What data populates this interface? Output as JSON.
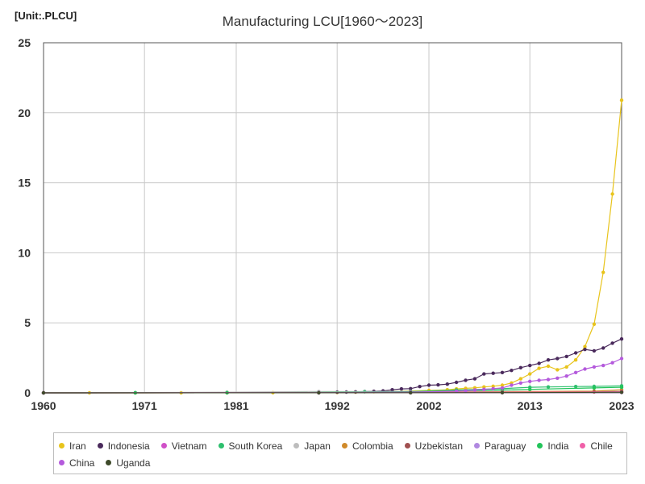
{
  "header": {
    "unit": "[Unit:.PLCU]",
    "title": "Manufacturing LCU[1960～2023]"
  },
  "chart_data": {
    "type": "line",
    "title": "Manufacturing LCU[1960～2023]",
    "unit_label": "[Unit:.PLCU]",
    "xlim": [
      1960,
      2023
    ],
    "ylim": [
      0,
      25
    ],
    "x_ticks": [
      "1960",
      "1971",
      "1981",
      "1992",
      "2002",
      "2013",
      "2023"
    ],
    "y_ticks": [
      "0",
      "5",
      "10",
      "15",
      "20",
      "25"
    ],
    "grid": true,
    "legend_position": "bottom",
    "series": [
      {
        "name": "Iran",
        "color": "#e8c41c",
        "points": [
          [
            1960,
            0.001
          ],
          [
            1965,
            0.001
          ],
          [
            1970,
            0.002
          ],
          [
            1975,
            0.004
          ],
          [
            1980,
            0.007
          ],
          [
            1985,
            0.012
          ],
          [
            1990,
            0.02
          ],
          [
            1992,
            0.03
          ],
          [
            1994,
            0.05
          ],
          [
            1996,
            0.08
          ],
          [
            1998,
            0.1
          ],
          [
            2000,
            0.13
          ],
          [
            2002,
            0.17
          ],
          [
            2004,
            0.22
          ],
          [
            2005,
            0.28
          ],
          [
            2006,
            0.32
          ],
          [
            2007,
            0.36
          ],
          [
            2008,
            0.42
          ],
          [
            2009,
            0.47
          ],
          [
            2010,
            0.55
          ],
          [
            2011,
            0.7
          ],
          [
            2012,
            1.0
          ],
          [
            2013,
            1.35
          ],
          [
            2014,
            1.75
          ],
          [
            2015,
            1.9
          ],
          [
            2016,
            1.65
          ],
          [
            2017,
            1.85
          ],
          [
            2018,
            2.35
          ],
          [
            2019,
            3.3
          ],
          [
            2020,
            4.9
          ],
          [
            2021,
            8.6
          ],
          [
            2022,
            14.2
          ],
          [
            2023,
            20.9
          ]
        ]
      },
      {
        "name": "Indonesia",
        "color": "#4a2a5c",
        "points": [
          [
            1960,
            0.001
          ],
          [
            1970,
            0.003
          ],
          [
            1980,
            0.01
          ],
          [
            1990,
            0.04
          ],
          [
            1992,
            0.05
          ],
          [
            1993,
            0.06
          ],
          [
            1994,
            0.07
          ],
          [
            1995,
            0.09
          ],
          [
            1996,
            0.11
          ],
          [
            1997,
            0.14
          ],
          [
            1998,
            0.22
          ],
          [
            1999,
            0.28
          ],
          [
            2000,
            0.3
          ],
          [
            2001,
            0.45
          ],
          [
            2002,
            0.55
          ],
          [
            2003,
            0.57
          ],
          [
            2004,
            0.62
          ],
          [
            2005,
            0.75
          ],
          [
            2006,
            0.9
          ],
          [
            2007,
            1.0
          ],
          [
            2008,
            1.35
          ],
          [
            2009,
            1.4
          ],
          [
            2010,
            1.45
          ],
          [
            2011,
            1.6
          ],
          [
            2012,
            1.8
          ],
          [
            2013,
            1.95
          ],
          [
            2014,
            2.1
          ],
          [
            2015,
            2.35
          ],
          [
            2016,
            2.45
          ],
          [
            2017,
            2.6
          ],
          [
            2018,
            2.85
          ],
          [
            2019,
            3.1
          ],
          [
            2020,
            3.0
          ],
          [
            2021,
            3.2
          ],
          [
            2022,
            3.55
          ],
          [
            2023,
            3.85
          ]
        ]
      },
      {
        "name": "Vietnam",
        "color": "#d050c8",
        "points": [
          [
            1960,
            0.001
          ],
          [
            1990,
            0.005
          ],
          [
            2000,
            0.01
          ],
          [
            2010,
            0.02
          ],
          [
            2023,
            0.03
          ]
        ]
      },
      {
        "name": "South Korea",
        "color": "#2ec06e",
        "points": [
          [
            1960,
            0.001
          ],
          [
            1970,
            0.005
          ],
          [
            1980,
            0.02
          ],
          [
            1990,
            0.06
          ],
          [
            1995,
            0.08
          ],
          [
            2000,
            0.1
          ],
          [
            2005,
            0.2
          ],
          [
            2010,
            0.3
          ],
          [
            2013,
            0.4
          ],
          [
            2015,
            0.42
          ],
          [
            2018,
            0.45
          ],
          [
            2020,
            0.46
          ],
          [
            2023,
            0.5
          ]
        ]
      },
      {
        "name": "Japan",
        "color": "#bdbdbd",
        "points": [
          [
            1960,
            0.001
          ],
          [
            1980,
            0.05
          ],
          [
            1990,
            0.1
          ],
          [
            2000,
            0.1
          ],
          [
            2010,
            0.1
          ],
          [
            2023,
            0.1
          ]
        ]
      },
      {
        "name": "Colombia",
        "color": "#d08a2a",
        "points": [
          [
            1960,
            0.001
          ],
          [
            1990,
            0.01
          ],
          [
            2000,
            0.04
          ],
          [
            2010,
            0.08
          ],
          [
            2020,
            0.12
          ],
          [
            2023,
            0.22
          ]
        ]
      },
      {
        "name": "Uzbekistan",
        "color": "#a05050",
        "points": [
          [
            1960,
            0.001
          ],
          [
            2000,
            0.005
          ],
          [
            2010,
            0.02
          ],
          [
            2020,
            0.06
          ],
          [
            2023,
            0.1
          ]
        ]
      },
      {
        "name": "Paraguay",
        "color": "#b088e0",
        "points": [
          [
            1960,
            0.001
          ],
          [
            1990,
            0.005
          ],
          [
            2000,
            0.01
          ],
          [
            2010,
            0.02
          ],
          [
            2023,
            0.03
          ]
        ]
      },
      {
        "name": "India",
        "color": "#22c45a",
        "points": [
          [
            1960,
            0.001
          ],
          [
            1970,
            0.005
          ],
          [
            1980,
            0.01
          ],
          [
            1990,
            0.03
          ],
          [
            2000,
            0.08
          ],
          [
            2010,
            0.2
          ],
          [
            2013,
            0.25
          ],
          [
            2020,
            0.35
          ],
          [
            2023,
            0.4
          ]
        ]
      },
      {
        "name": "Chile",
        "color": "#f060a8",
        "points": [
          [
            1960,
            0.001
          ],
          [
            1990,
            0.02
          ],
          [
            2000,
            0.03
          ],
          [
            2010,
            0.05
          ],
          [
            2023,
            0.07
          ]
        ]
      },
      {
        "name": "China",
        "color": "#b45adc",
        "points": [
          [
            1960,
            0.001
          ],
          [
            1990,
            0.02
          ],
          [
            2000,
            0.05
          ],
          [
            2005,
            0.12
          ],
          [
            2006,
            0.15
          ],
          [
            2007,
            0.2
          ],
          [
            2008,
            0.25
          ],
          [
            2009,
            0.3
          ],
          [
            2010,
            0.35
          ],
          [
            2011,
            0.55
          ],
          [
            2012,
            0.7
          ],
          [
            2013,
            0.82
          ],
          [
            2014,
            0.9
          ],
          [
            2015,
            0.95
          ],
          [
            2016,
            1.05
          ],
          [
            2017,
            1.2
          ],
          [
            2018,
            1.45
          ],
          [
            2019,
            1.7
          ],
          [
            2020,
            1.85
          ],
          [
            2021,
            1.95
          ],
          [
            2022,
            2.15
          ],
          [
            2023,
            2.45
          ]
        ]
      },
      {
        "name": "Uganda",
        "color": "#3e4a2a",
        "points": [
          [
            1960,
            0.001
          ],
          [
            1990,
            0.005
          ],
          [
            2000,
            0.01
          ],
          [
            2010,
            0.02
          ],
          [
            2023,
            0.04
          ]
        ]
      }
    ]
  }
}
